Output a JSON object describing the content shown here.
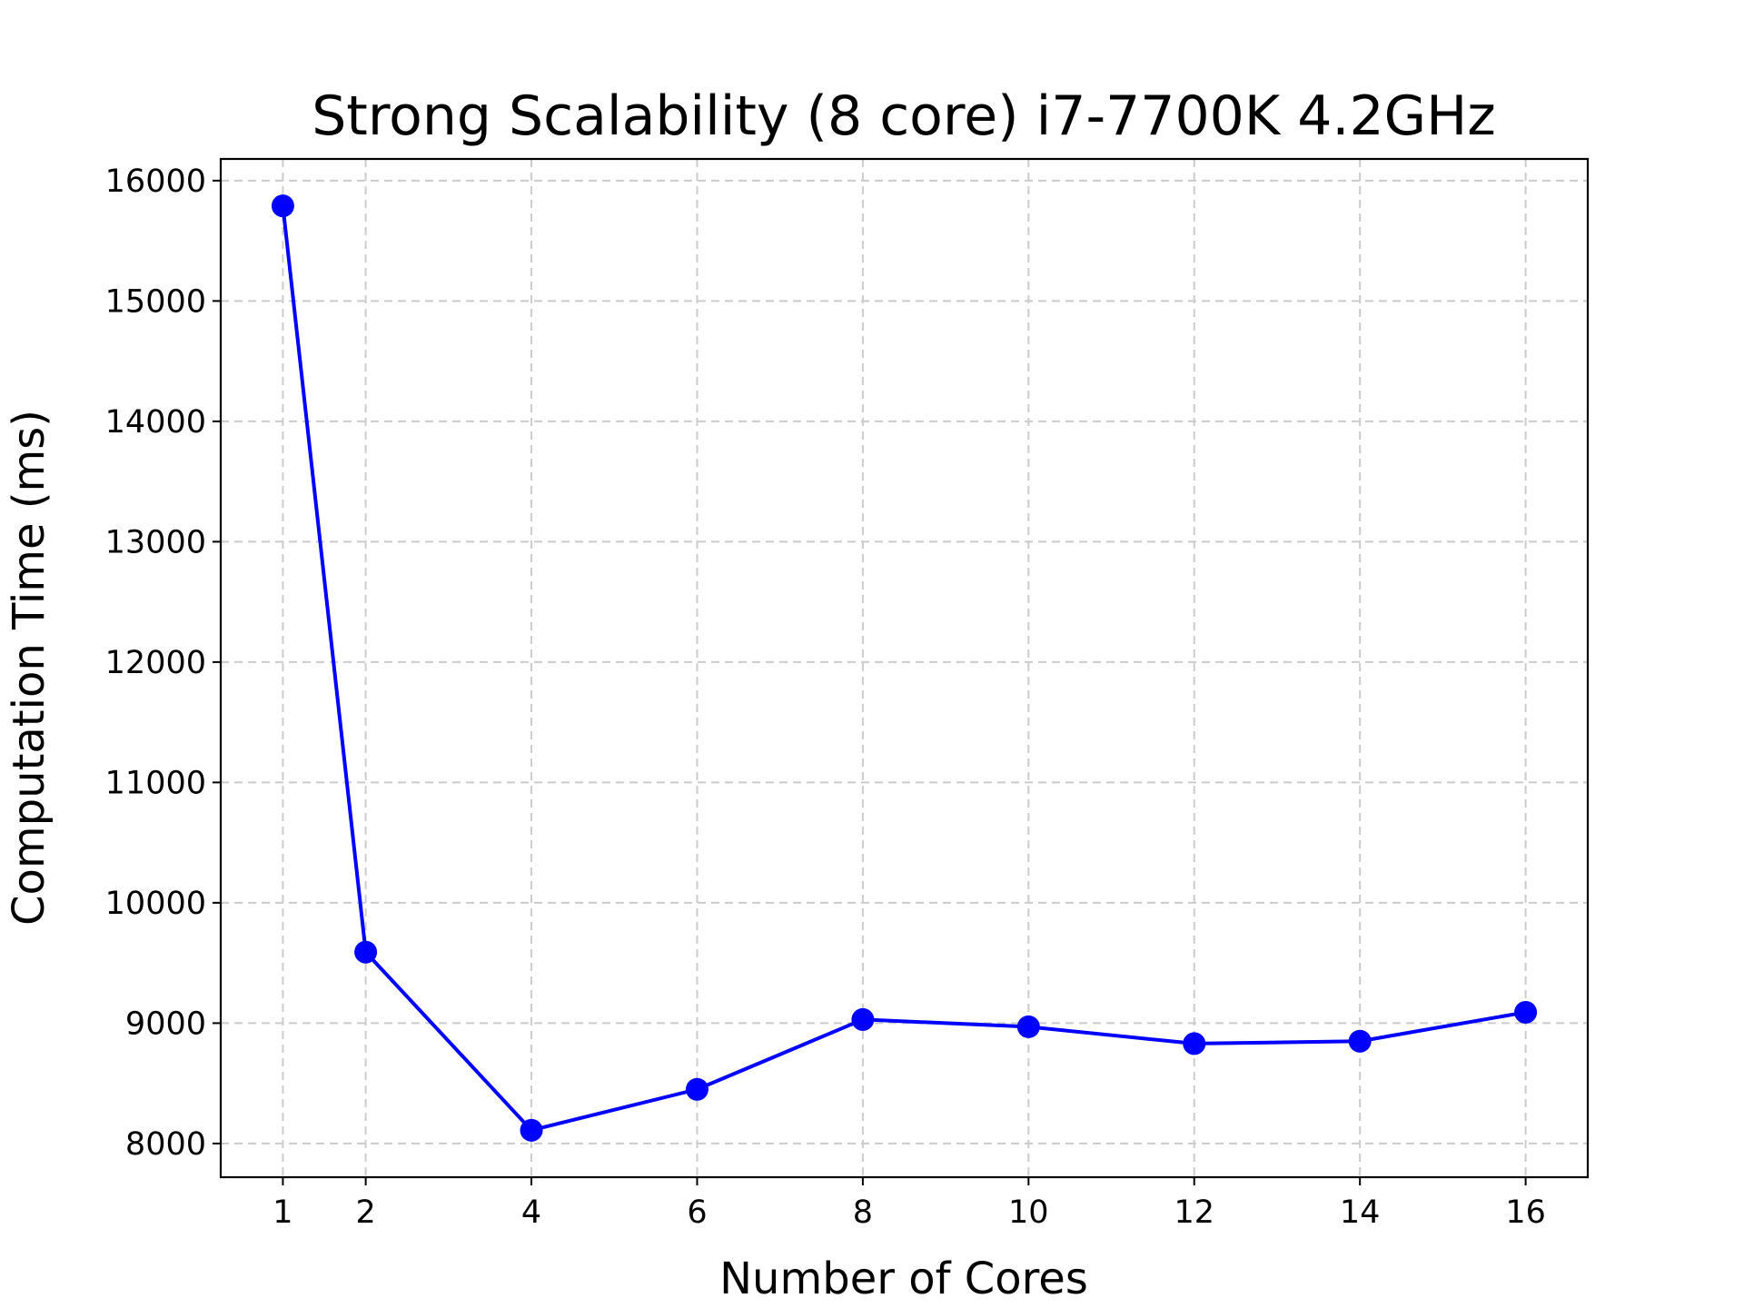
{
  "chart_data": {
    "type": "line",
    "title": "Strong Scalability (8 core) i7-7700K 4.2GHz",
    "xlabel": "Number of Cores",
    "ylabel": "Computation Time (ms)",
    "x_ticks": [
      1,
      2,
      4,
      6,
      8,
      10,
      12,
      14,
      16
    ],
    "x_tick_labels": [
      "1",
      "2",
      "4",
      "6",
      "8",
      "10",
      "12",
      "14",
      "16"
    ],
    "y_ticks": [
      8000,
      9000,
      10000,
      11000,
      12000,
      13000,
      14000,
      15000,
      16000
    ],
    "y_tick_labels": [
      "8000",
      "9000",
      "10000",
      "11000",
      "12000",
      "13000",
      "14000",
      "15000",
      "16000"
    ],
    "xlim": [
      0.25,
      16.75
    ],
    "ylim": [
      7720,
      16180
    ],
    "grid": true,
    "series": [
      {
        "color": "#0000ff",
        "marker": "circle",
        "x": [
          1,
          2,
          4,
          6,
          8,
          10,
          12,
          14,
          16
        ],
        "y": [
          15790,
          9590,
          8110,
          8450,
          9030,
          8970,
          8830,
          8850,
          9090
        ]
      }
    ]
  }
}
